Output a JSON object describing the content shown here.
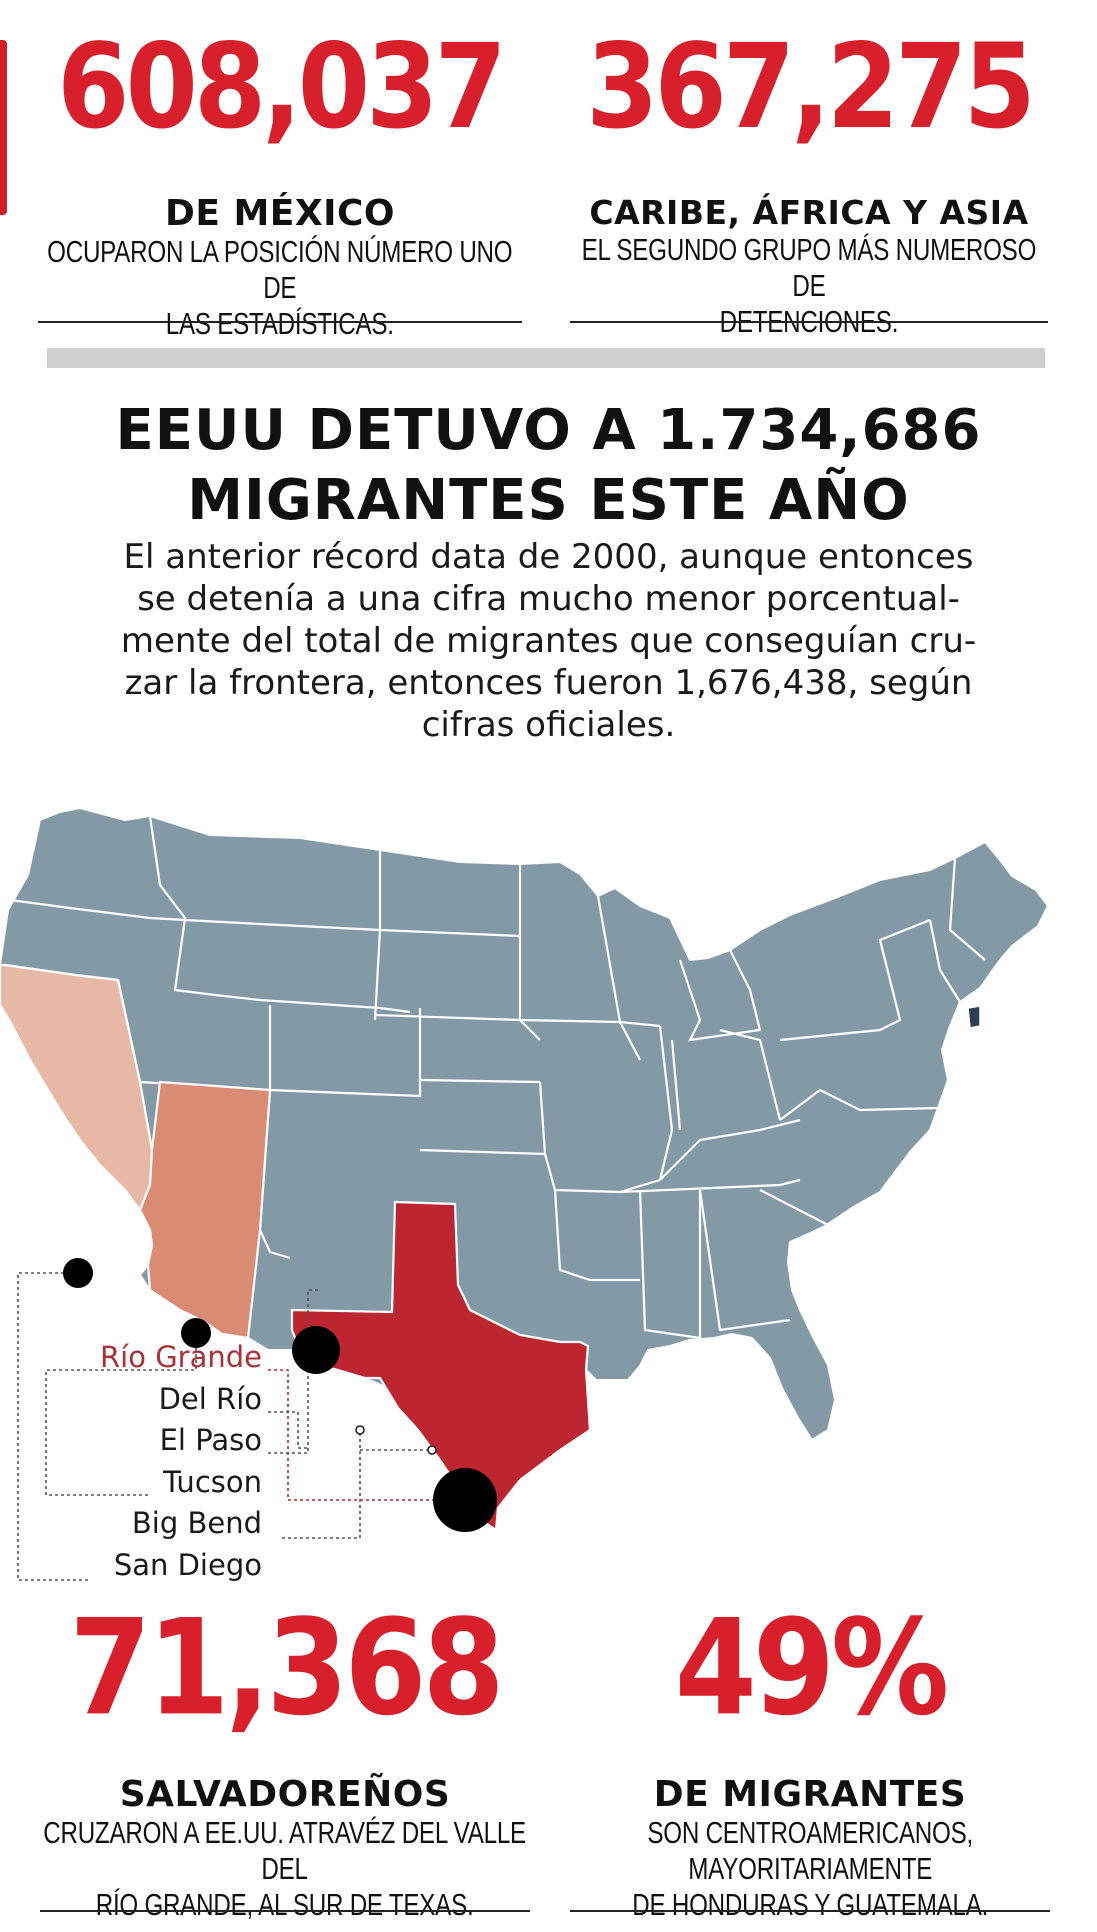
{
  "top_stats": [
    {
      "value": "608,037",
      "label": "DE MÉXICO",
      "desc_lines": [
        "OCUPARON LA POSICIÓN NÚMERO UNO DE",
        "LAS ESTADÍSTICAS."
      ]
    },
    {
      "value": "367,275",
      "label": "CARIBE, ÁFRICA Y ASIA",
      "desc_lines": [
        "EL SEGUNDO GRUPO MÁS NUMEROSO DE",
        "DETENCIONES."
      ]
    }
  ],
  "headline_lines": [
    "EEUU DETUVO A 1.734,686",
    "MIGRANTES ESTE AÑO"
  ],
  "intro_lines": [
    "El anterior récord data de 2000, aunque entonces",
    "se detenía a una cifra mucho menor porcentual-",
    "mente del total de migrantes que conseguían cru-",
    "zar la frontera, entonces fueron 1,676,438, según",
    "cifras oficiales."
  ],
  "map": {
    "colors": {
      "base": "#8499a6",
      "border": "#ffffff",
      "california": "#e7b8a5",
      "arizona": "#d98b73",
      "texas": "#bd2530",
      "rhode_island": "#2e3e52",
      "marker": "#000000",
      "highlight_label": "#a8323a"
    },
    "sectors": [
      {
        "name": "Río Grande",
        "highlight": true
      },
      {
        "name": "Del Río",
        "highlight": false
      },
      {
        "name": "El Paso",
        "highlight": false
      },
      {
        "name": "Tucson",
        "highlight": false
      },
      {
        "name": "Big Bend",
        "highlight": false
      },
      {
        "name": "San Diego",
        "highlight": false
      }
    ]
  },
  "bottom_stats": [
    {
      "value": "71,368",
      "label": "SALVADOREÑOS",
      "desc_lines": [
        "CRUZARON A EE.UU. ATRAVÉZ DEL VALLE DEL",
        "RÍO GRANDE, AL SUR DE TEXAS."
      ]
    },
    {
      "value": "49%",
      "label": "DE MIGRANTES",
      "desc_lines": [
        "SON CENTROAMERICANOS, MAYORITARIAMENTE",
        "DE HONDURAS Y GUATEMALA."
      ]
    }
  ],
  "accent_color": "#d7202b"
}
